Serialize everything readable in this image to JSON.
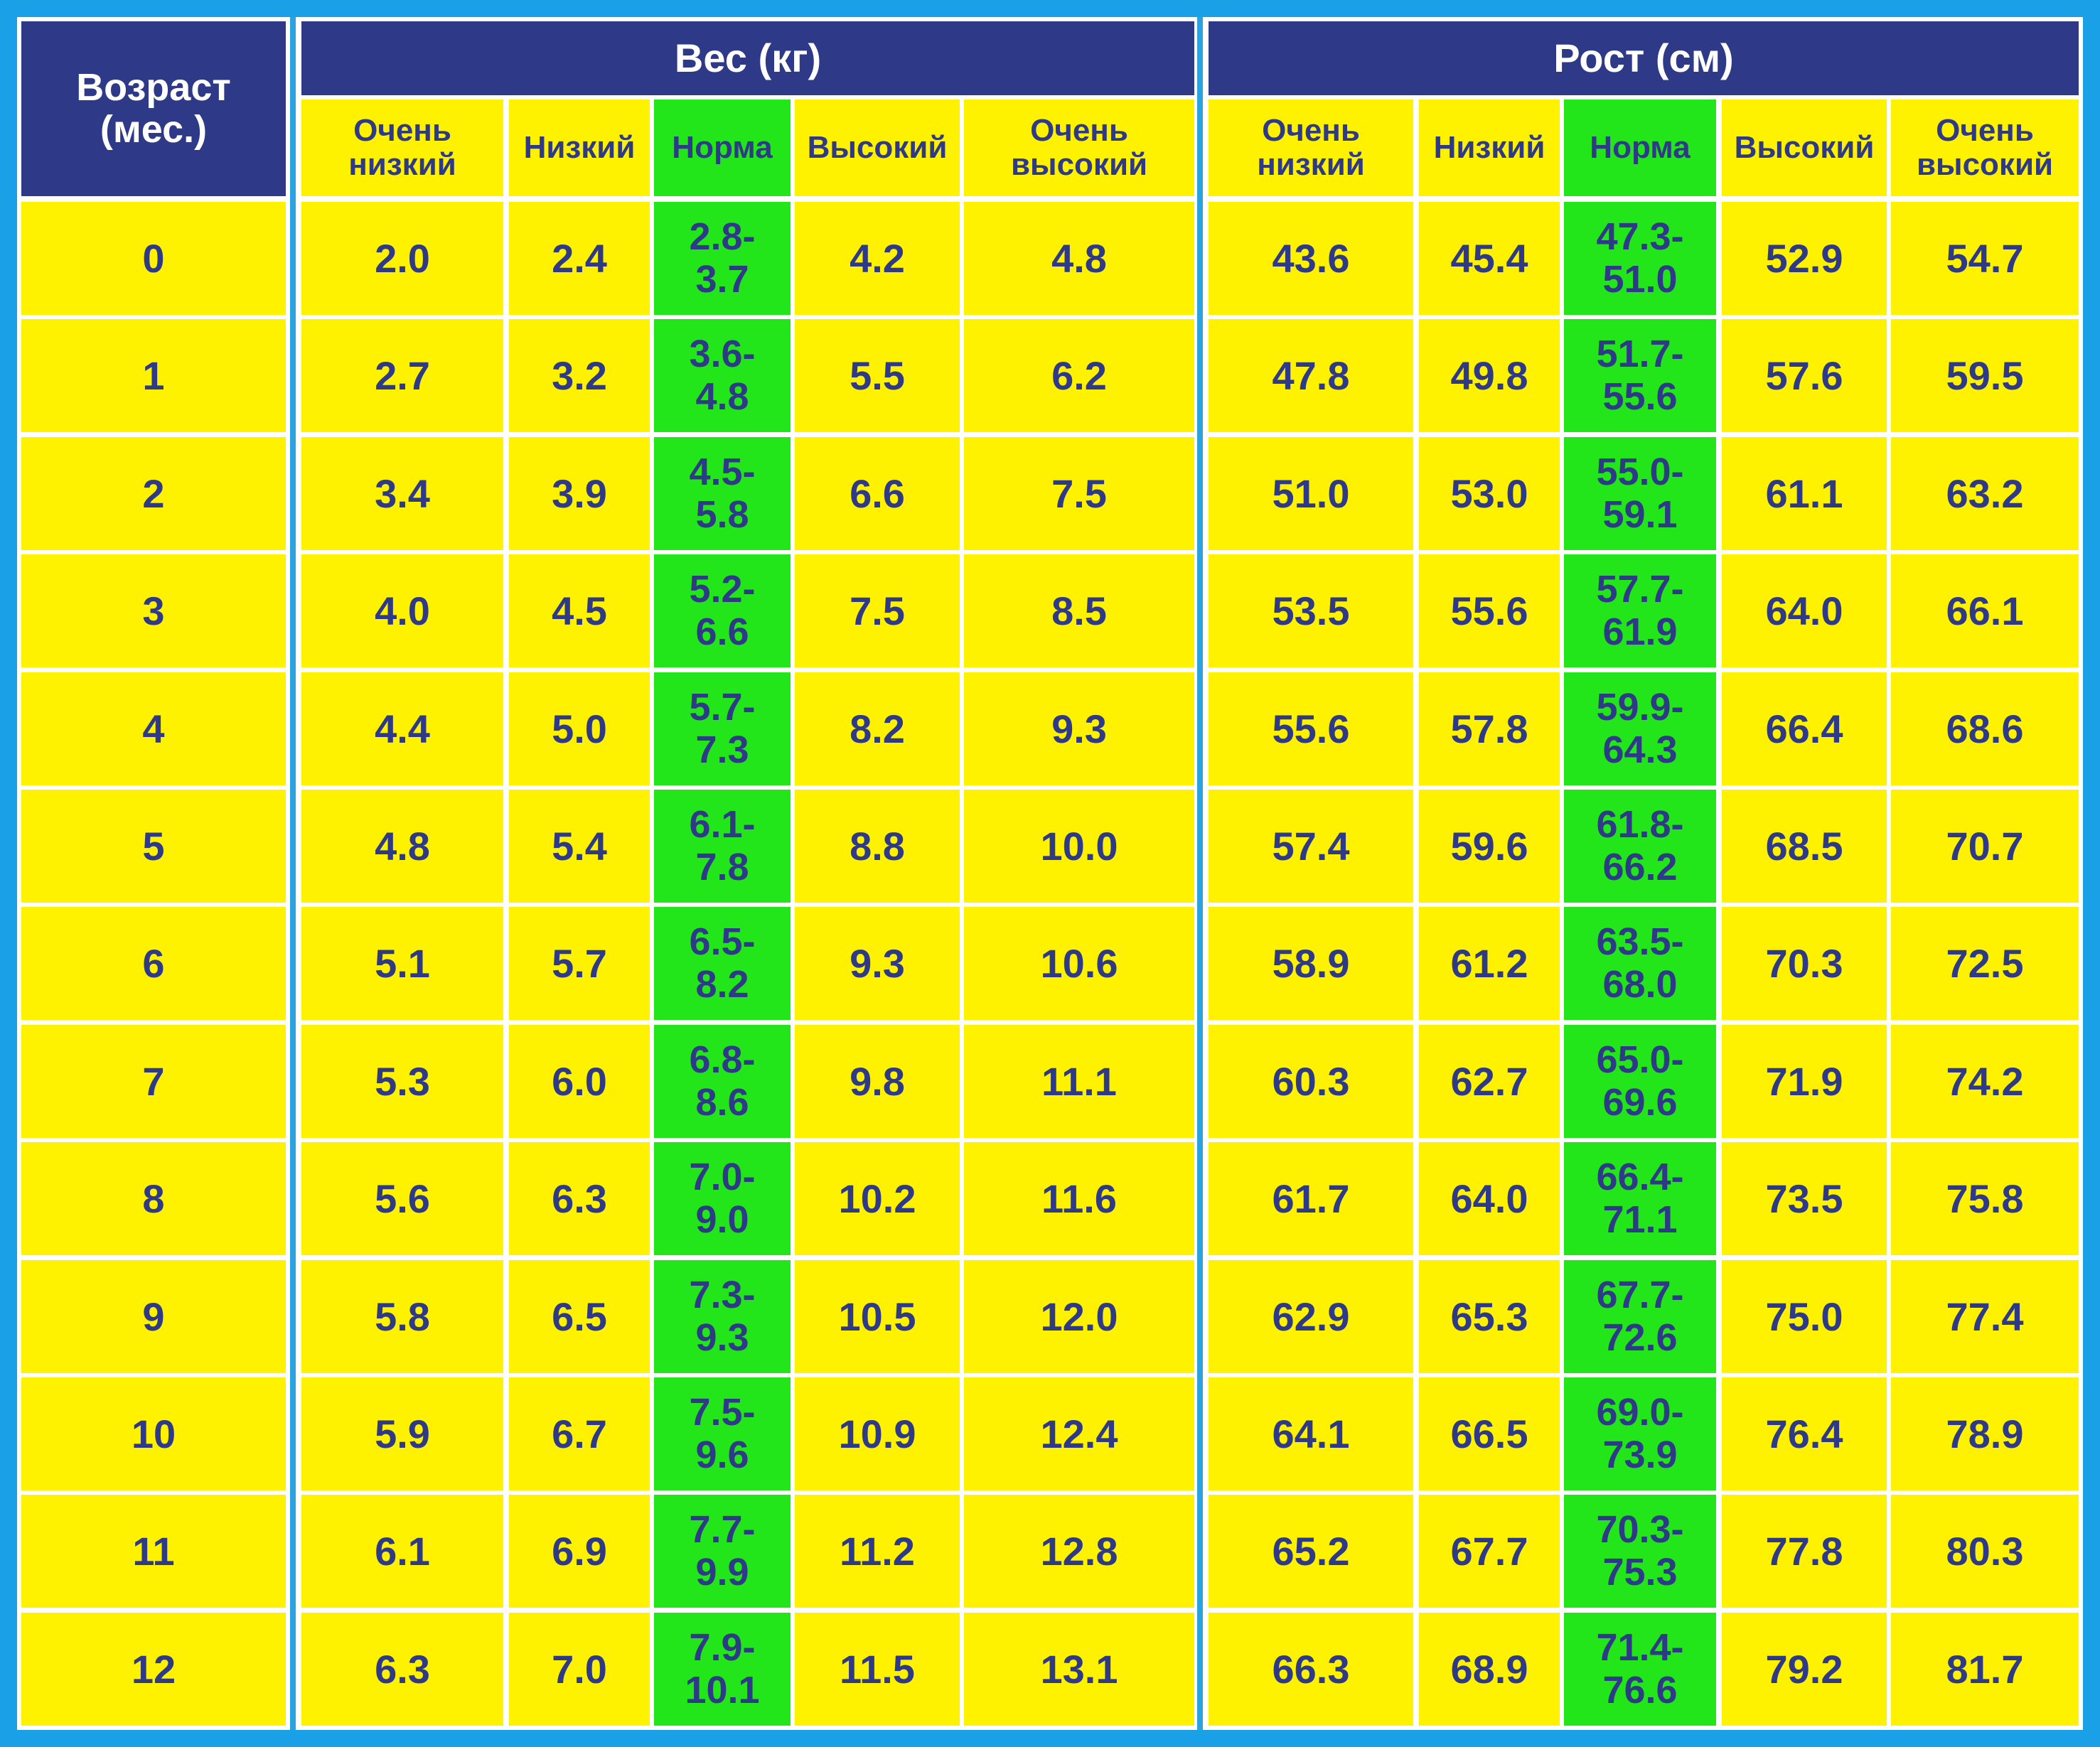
{
  "colors": {
    "background": "#1aa0e6",
    "header_dark": "#2e3a87",
    "cell_yellow": "#fff200",
    "cell_norma_green": "#22e61a",
    "text": "#2e3a87"
  },
  "header": {
    "age": "Возраст (мес.)",
    "weight_group": "Вес (кг)",
    "height_group": "Рост (см)"
  },
  "subheaders": [
    "Очень низкий",
    "Низкий",
    "Норма",
    "Высокий",
    "Очень высокий"
  ],
  "chart_data": {
    "type": "table",
    "columns": [
      "Возраст (мес.)",
      "Вес (кг): Очень низкий",
      "Вес (кг): Низкий",
      "Вес (кг): Норма",
      "Вес (кг): Высокий",
      "Вес (кг): Очень высокий",
      "Рост (см): Очень низкий",
      "Рост (см): Низкий",
      "Рост (см): Норма",
      "Рост (см): Высокий",
      "Рост (см): Очень высокий"
    ],
    "rows": [
      {
        "age": "0",
        "weight": [
          "2.0",
          "2.4",
          "2.8-3.7",
          "4.2",
          "4.8"
        ],
        "height": [
          "43.6",
          "45.4",
          "47.3-51.0",
          "52.9",
          "54.7"
        ]
      },
      {
        "age": "1",
        "weight": [
          "2.7",
          "3.2",
          "3.6-4.8",
          "5.5",
          "6.2"
        ],
        "height": [
          "47.8",
          "49.8",
          "51.7-55.6",
          "57.6",
          "59.5"
        ]
      },
      {
        "age": "2",
        "weight": [
          "3.4",
          "3.9",
          "4.5-5.8",
          "6.6",
          "7.5"
        ],
        "height": [
          "51.0",
          "53.0",
          "55.0-59.1",
          "61.1",
          "63.2"
        ]
      },
      {
        "age": "3",
        "weight": [
          "4.0",
          "4.5",
          "5.2-6.6",
          "7.5",
          "8.5"
        ],
        "height": [
          "53.5",
          "55.6",
          "57.7-61.9",
          "64.0",
          "66.1"
        ]
      },
      {
        "age": "4",
        "weight": [
          "4.4",
          "5.0",
          "5.7-7.3",
          "8.2",
          "9.3"
        ],
        "height": [
          "55.6",
          "57.8",
          "59.9-64.3",
          "66.4",
          "68.6"
        ]
      },
      {
        "age": "5",
        "weight": [
          "4.8",
          "5.4",
          "6.1-7.8",
          "8.8",
          "10.0"
        ],
        "height": [
          "57.4",
          "59.6",
          "61.8-66.2",
          "68.5",
          "70.7"
        ]
      },
      {
        "age": "6",
        "weight": [
          "5.1",
          "5.7",
          "6.5-8.2",
          "9.3",
          "10.6"
        ],
        "height": [
          "58.9",
          "61.2",
          "63.5-68.0",
          "70.3",
          "72.5"
        ]
      },
      {
        "age": "7",
        "weight": [
          "5.3",
          "6.0",
          "6.8-8.6",
          "9.8",
          "11.1"
        ],
        "height": [
          "60.3",
          "62.7",
          "65.0-69.6",
          "71.9",
          "74.2"
        ]
      },
      {
        "age": "8",
        "weight": [
          "5.6",
          "6.3",
          "7.0-9.0",
          "10.2",
          "11.6"
        ],
        "height": [
          "61.7",
          "64.0",
          "66.4-71.1",
          "73.5",
          "75.8"
        ]
      },
      {
        "age": "9",
        "weight": [
          "5.8",
          "6.5",
          "7.3-9.3",
          "10.5",
          "12.0"
        ],
        "height": [
          "62.9",
          "65.3",
          "67.7-72.6",
          "75.0",
          "77.4"
        ]
      },
      {
        "age": "10",
        "weight": [
          "5.9",
          "6.7",
          "7.5-9.6",
          "10.9",
          "12.4"
        ],
        "height": [
          "64.1",
          "66.5",
          "69.0-73.9",
          "76.4",
          "78.9"
        ]
      },
      {
        "age": "11",
        "weight": [
          "6.1",
          "6.9",
          "7.7-9.9",
          "11.2",
          "12.8"
        ],
        "height": [
          "65.2",
          "67.7",
          "70.3-75.3",
          "77.8",
          "80.3"
        ]
      },
      {
        "age": "12",
        "weight": [
          "6.3",
          "7.0",
          "7.9-10.1",
          "11.5",
          "13.1"
        ],
        "height": [
          "66.3",
          "68.9",
          "71.4-76.6",
          "79.2",
          "81.7"
        ]
      }
    ]
  }
}
